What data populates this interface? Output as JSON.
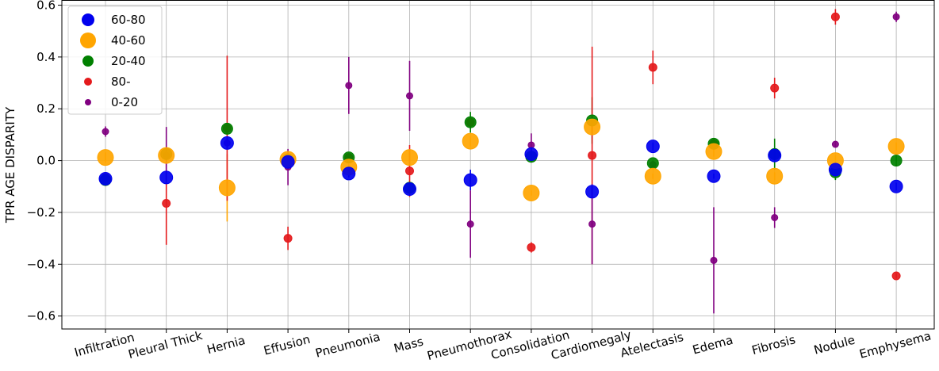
{
  "chart_data": {
    "type": "scatter",
    "title": "",
    "xlabel": "",
    "ylabel": "TPR AGE DISPARITY",
    "ylim": [
      -0.65,
      0.62
    ],
    "yticks": [
      0.6,
      0.4,
      0.2,
      0.0,
      -0.2,
      -0.4,
      -0.6
    ],
    "ytick_labels": [
      "0.6",
      "0.4",
      "0.2",
      "0.0",
      "−0.2",
      "−0.4",
      "−0.6"
    ],
    "grid": true,
    "legend_position": "top-left",
    "categories": [
      "Infiltration",
      "Pleural Thick",
      "Hernia",
      "Effusion",
      "Pneumonia",
      "Mass",
      "Pneumothorax",
      "Consolidation",
      "Cardiomegaly",
      "Atelectasis",
      "Edema",
      "Fibrosis",
      "Nodule",
      "Emphysema"
    ],
    "series": [
      {
        "name": "60-80",
        "color": "#0000ee",
        "marker_size": 8,
        "values": [
          -0.07,
          -0.065,
          0.068,
          -0.005,
          -0.05,
          -0.11,
          -0.075,
          0.025,
          -0.12,
          0.055,
          -0.06,
          0.02,
          -0.035,
          -0.1
        ],
        "errors": [
          0.01,
          0.015,
          0.02,
          0.01,
          0.015,
          0.012,
          0.04,
          0.012,
          0.015,
          0.015,
          0.01,
          0.012,
          0.02,
          0.015
        ]
      },
      {
        "name": "40-60",
        "color": "#ffa500",
        "marker_size": 10,
        "values": [
          0.012,
          0.02,
          -0.105,
          0.005,
          -0.025,
          0.012,
          0.075,
          -0.125,
          0.13,
          -0.06,
          0.035,
          -0.06,
          0.0,
          0.055
        ],
        "errors": [
          0.02,
          0.03,
          0.13,
          0.01,
          0.01,
          0.02,
          0.02,
          0.01,
          0.02,
          0.01,
          0.02,
          0.015,
          0.02,
          0.015
        ]
      },
      {
        "name": "20-40",
        "color": "#008000",
        "marker_size": 7,
        "values": [
          -0.075,
          0.025,
          0.123,
          0.005,
          0.012,
          -0.105,
          0.148,
          0.015,
          0.155,
          -0.01,
          0.065,
          0.025,
          -0.045,
          0.0
        ],
        "errors": [
          0.01,
          0.015,
          0.02,
          0.01,
          0.01,
          0.01,
          0.04,
          0.02,
          0.09,
          0.01,
          0.02,
          0.06,
          0.03,
          0.02
        ]
      },
      {
        "name": "80-",
        "color": "#e41a1c",
        "marker_size": 5,
        "values": [
          -0.065,
          -0.165,
          0.125,
          -0.3,
          0.012,
          -0.04,
          0.148,
          -0.335,
          0.02,
          0.36,
          0.065,
          0.28,
          0.555,
          -0.445
        ],
        "errors": [
          0.01,
          0.16,
          0.28,
          0.045,
          0.01,
          0.1,
          0.01,
          0.02,
          0.42,
          0.065,
          0.02,
          0.04,
          0.03,
          0.01
        ]
      },
      {
        "name": "0-20",
        "color": "#800080",
        "marker_size": 4,
        "values": [
          0.112,
          0.02,
          0.068,
          -0.025,
          0.29,
          0.25,
          -0.245,
          0.06,
          -0.245,
          -0.015,
          -0.385,
          -0.22,
          0.063,
          0.555
        ],
        "errors": [
          0.02,
          0.11,
          0.02,
          0.07,
          0.11,
          0.135,
          0.13,
          0.045,
          0.155,
          0.01,
          0.205,
          0.04,
          0.01,
          0.02
        ]
      }
    ]
  }
}
